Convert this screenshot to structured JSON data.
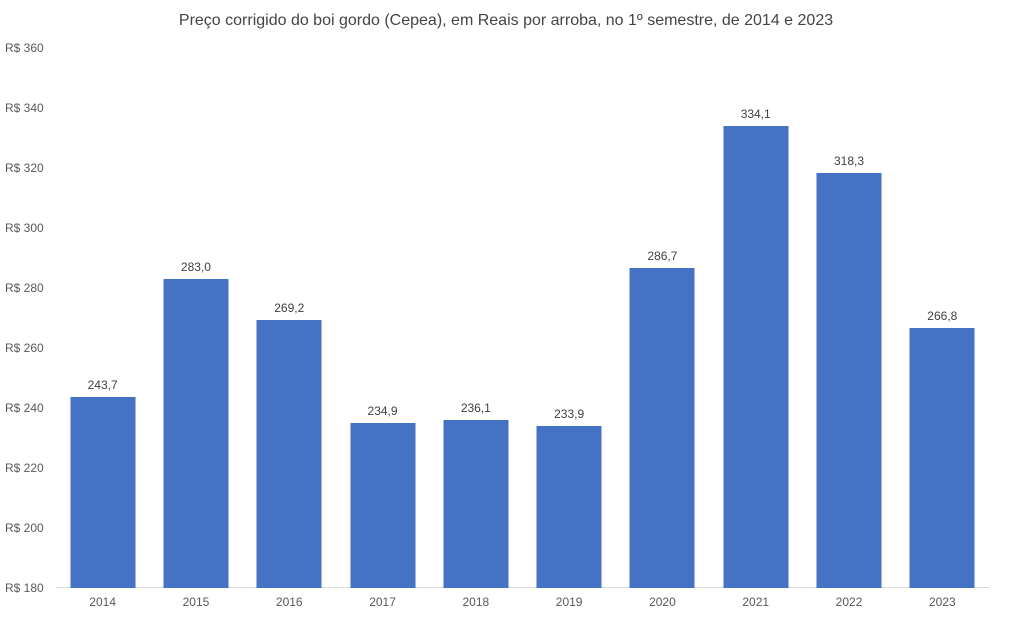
{
  "chart_data": {
    "type": "bar",
    "title": "Preço corrigido do boi gordo (Cepea), em Reais por arroba, no 1º semestre, de 2014 e 2023",
    "categories": [
      "2014",
      "2015",
      "2016",
      "2017",
      "2018",
      "2019",
      "2020",
      "2021",
      "2022",
      "2023"
    ],
    "values": [
      243.7,
      283.0,
      269.2,
      234.9,
      236.1,
      233.9,
      286.7,
      334.1,
      318.3,
      266.8
    ],
    "value_labels": [
      "243,7",
      "283,0",
      "269,2",
      "234,9",
      "236,1",
      "233,9",
      "286,7",
      "334,1",
      "318,3",
      "266,8"
    ],
    "xlabel": "",
    "ylabel": "",
    "ylim": [
      180,
      360
    ],
    "yticks": [
      {
        "value": 180,
        "label": "R$ 180"
      },
      {
        "value": 200,
        "label": "R$ 200"
      },
      {
        "value": 220,
        "label": "R$ 220"
      },
      {
        "value": 240,
        "label": "R$ 240"
      },
      {
        "value": 260,
        "label": "R$ 260"
      },
      {
        "value": 280,
        "label": "R$ 280"
      },
      {
        "value": 300,
        "label": "R$ 300"
      },
      {
        "value": 320,
        "label": "R$ 320"
      },
      {
        "value": 340,
        "label": "R$ 340"
      },
      {
        "value": 360,
        "label": "R$ 360"
      }
    ],
    "grid": false,
    "legend": false,
    "colors": {
      "bar": "#4472C4",
      "axis_line": "#D9D9D9",
      "value_label": "#404040",
      "tick_label": "#595959",
      "title": "#444444",
      "background": "#FFFFFF"
    }
  }
}
